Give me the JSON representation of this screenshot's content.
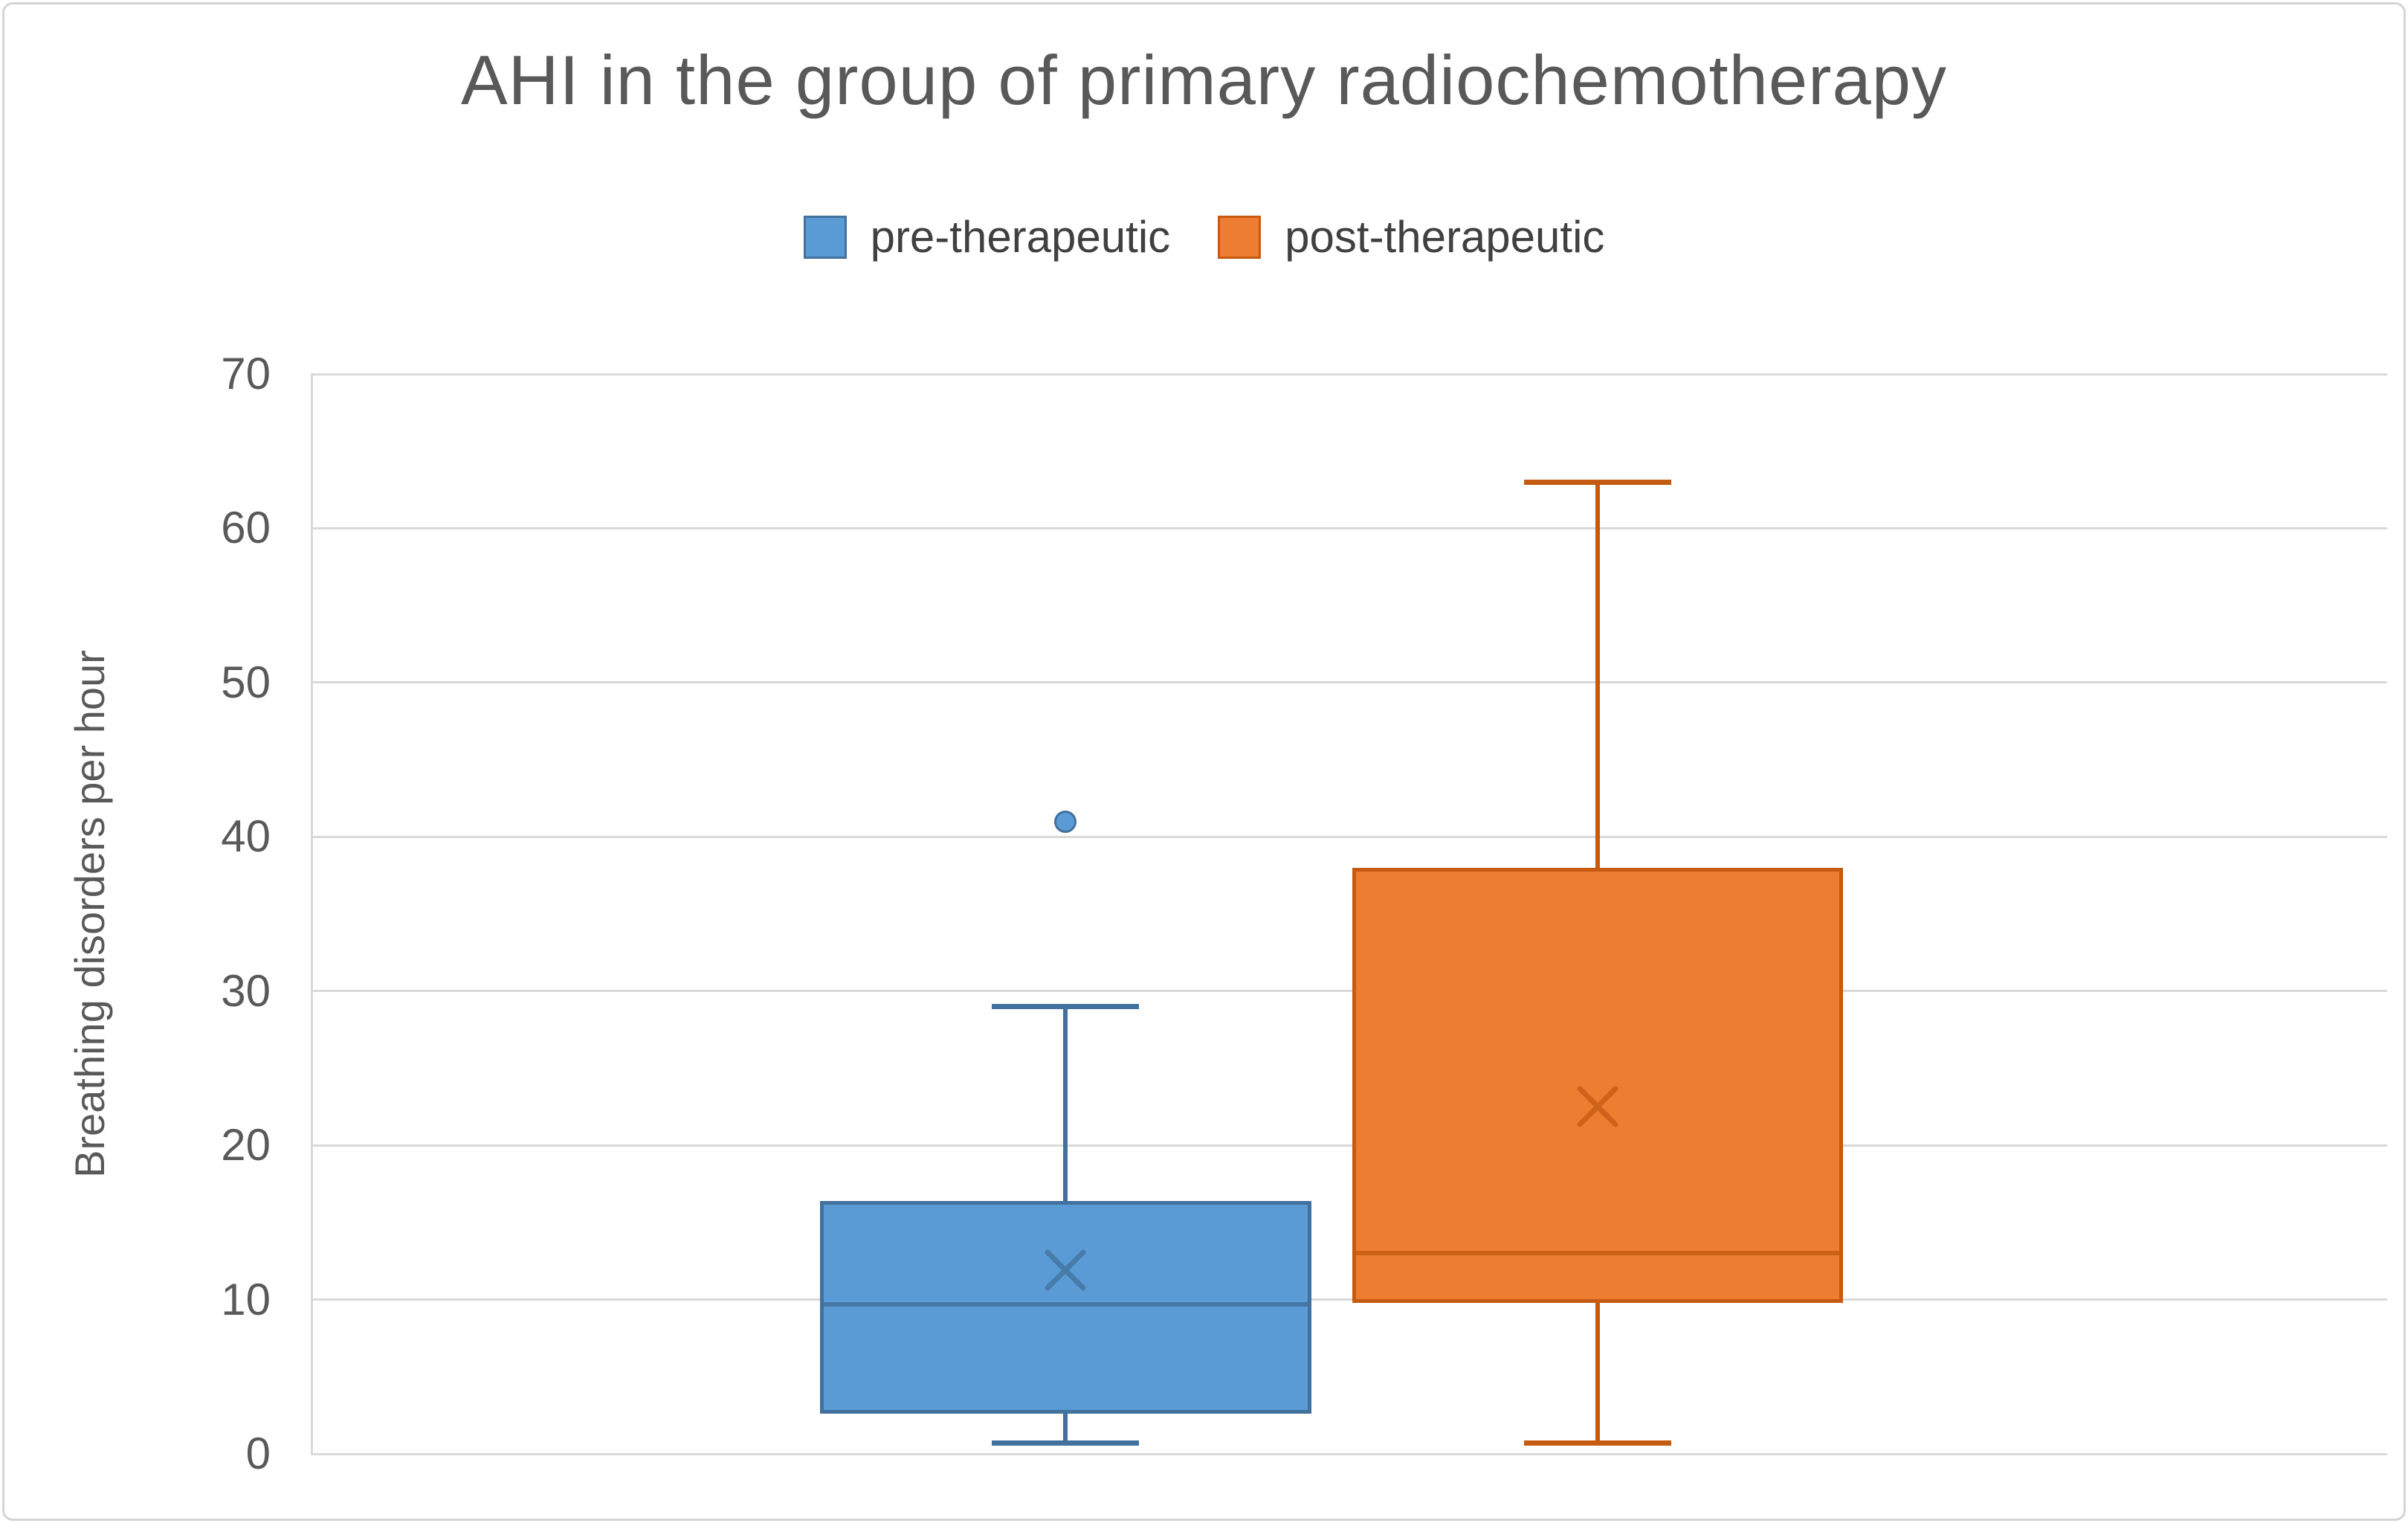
{
  "window": {
    "background": "#ffffff",
    "frame_border_color": "#d4d4d4"
  },
  "text_colors": {
    "title": "#595959",
    "axis": "#595959",
    "legend": "#404040"
  },
  "chart_data": {
    "type": "boxplot",
    "title": "AHI in the group of primary radiochemotherapy",
    "ylabel": "Breathing disorders per hour",
    "xlabel": "",
    "ylim": [
      0,
      70
    ],
    "yticks": [
      0,
      10,
      20,
      30,
      40,
      50,
      60,
      70
    ],
    "grid": true,
    "gridline_color": "#d9d9d9",
    "legend_position": "top",
    "legend_entries": [
      "pre-therapeutic",
      "post-therapeutic"
    ],
    "series": [
      {
        "name": "pre-therapeutic",
        "fill": "#5B9BD5",
        "stroke": "#41719C",
        "min": 0.7,
        "q1": 2.6,
        "median": 9.7,
        "q3": 16.4,
        "max": 29,
        "mean": 11.9,
        "outliers": [
          41
        ],
        "center_frac": 0.3635,
        "box_width_frac": 0.2365
      },
      {
        "name": "post-therapeutic",
        "fill": "#ED7D31",
        "stroke": "#C55A11",
        "min": 0.7,
        "q1": 9.8,
        "median": 13,
        "q3": 38,
        "max": 63,
        "mean": 22.5,
        "outliers": [],
        "center_frac": 0.6197,
        "box_width_frac": 0.2365
      }
    ]
  }
}
